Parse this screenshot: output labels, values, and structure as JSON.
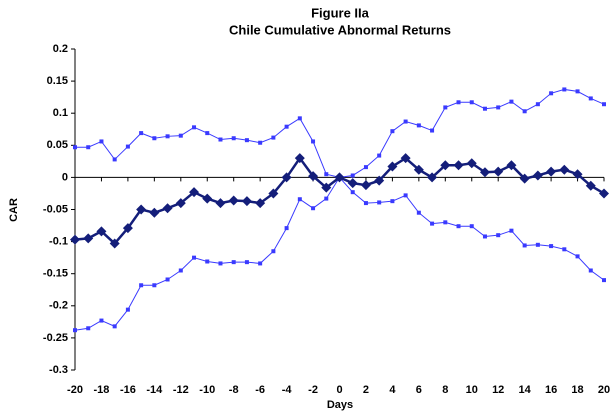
{
  "chart_data": {
    "type": "line",
    "title": "Figure IIa",
    "subtitle": "Chile Cumulative Abnormal Returns",
    "x_label": "Days",
    "y_label": "CAR",
    "x": [
      -20,
      -19,
      -18,
      -17,
      -16,
      -15,
      -14,
      -13,
      -12,
      -11,
      -10,
      -9,
      -8,
      -7,
      -6,
      -5,
      -4,
      -3,
      -2,
      -1,
      0,
      1,
      2,
      3,
      4,
      5,
      6,
      7,
      8,
      9,
      10,
      11,
      12,
      13,
      14,
      15,
      16,
      17,
      18,
      19,
      20
    ],
    "xlim": [
      -20,
      20
    ],
    "xticks": [
      -20,
      -18,
      -16,
      -14,
      -12,
      -10,
      -8,
      -6,
      -4,
      -2,
      0,
      2,
      4,
      6,
      8,
      10,
      12,
      14,
      16,
      18,
      20
    ],
    "ylim": [
      -0.3,
      0.2
    ],
    "yticks": [
      0.2,
      0.15,
      0.1,
      0.05,
      0,
      -0.05,
      -0.1,
      -0.15,
      -0.2,
      -0.25,
      -0.3
    ],
    "series": [
      {
        "color": "#3a3aff",
        "marker": "square",
        "values": [
          0.047,
          0.047,
          0.056,
          0.028,
          0.048,
          0.069,
          0.061,
          0.064,
          0.065,
          0.078,
          0.069,
          0.059,
          0.061,
          0.058,
          0.054,
          0.062,
          0.079,
          0.092,
          0.056,
          0.005,
          0,
          0.003,
          0.016,
          0.034,
          0.072,
          0.087,
          0.081,
          0.073,
          0.109,
          0.117,
          0.117,
          0.107,
          0.109,
          0.118,
          0.103,
          0.114,
          0.131,
          0.137,
          0.134,
          0.123,
          0.114
        ]
      },
      {
        "color": "#3a3aff",
        "marker": "square",
        "values": [
          -0.238,
          -0.235,
          -0.223,
          -0.232,
          -0.206,
          -0.168,
          -0.168,
          -0.159,
          -0.145,
          -0.125,
          -0.131,
          -0.134,
          -0.132,
          -0.132,
          -0.134,
          -0.115,
          -0.079,
          -0.034,
          -0.048,
          -0.033,
          0,
          -0.023,
          -0.04,
          -0.039,
          -0.037,
          -0.028,
          -0.055,
          -0.072,
          -0.07,
          -0.076,
          -0.076,
          -0.092,
          -0.09,
          -0.083,
          -0.106,
          -0.105,
          -0.107,
          -0.112,
          -0.123,
          -0.145,
          -0.16
        ]
      },
      {
        "color": "#141e7a",
        "marker": "diamond",
        "values": [
          -0.097,
          -0.095,
          -0.084,
          -0.103,
          -0.079,
          -0.05,
          -0.055,
          -0.048,
          -0.04,
          -0.023,
          -0.033,
          -0.04,
          -0.036,
          -0.037,
          -0.04,
          -0.025,
          0,
          0.03,
          0.002,
          -0.016,
          0,
          -0.009,
          -0.012,
          -0.005,
          0.017,
          0.03,
          0.012,
          0,
          0.019,
          0.019,
          0.022,
          0.008,
          0.009,
          0.019,
          -0.002,
          0.003,
          0.009,
          0.012,
          0.005,
          -0.013,
          -0.025
        ]
      }
    ]
  }
}
